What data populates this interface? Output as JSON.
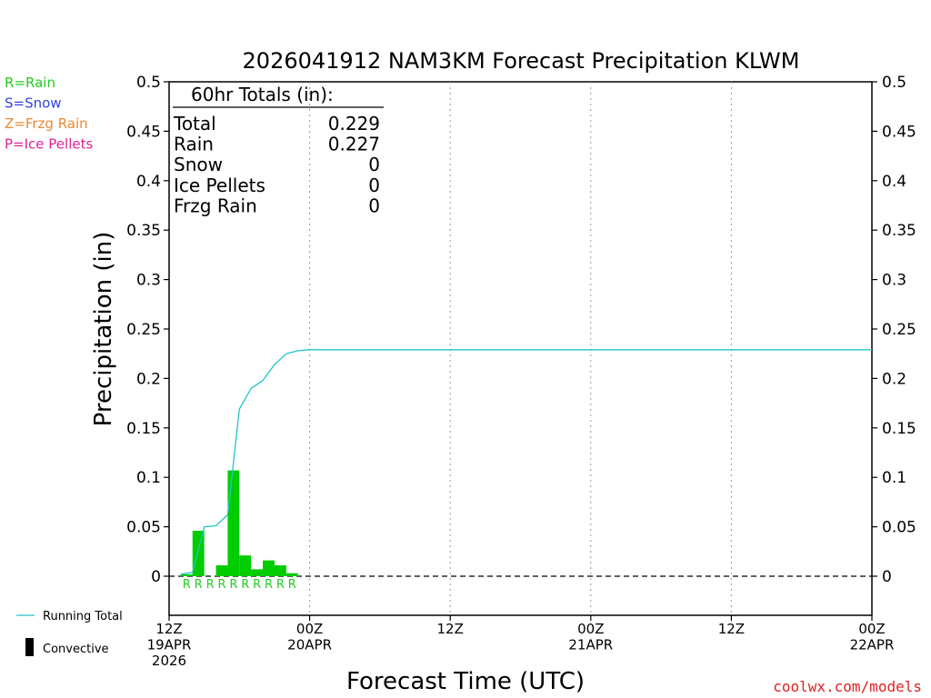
{
  "title": "2026041912 NAM3KM Forecast Precipitation KLWM",
  "ylabel": "Precipitation (in)",
  "xlabel": "Forecast Time (UTC)",
  "credit": "coolwx.com/models",
  "legend_left": [
    {
      "text": "R=Rain",
      "color": "#22cc22"
    },
    {
      "text": "S=Snow",
      "color": "#3344dd"
    },
    {
      "text": "Z=Frzg Rain",
      "color": "#ee8833"
    },
    {
      "text": "P=Ice Pellets",
      "color": "#dd2299"
    }
  ],
  "legend_bottom": {
    "running_total": "Running Total",
    "convective": "Convective"
  },
  "totals": {
    "header": "60hr Totals (in):",
    "rows": [
      {
        "label": "Total",
        "value": "0.229"
      },
      {
        "label": "Rain",
        "value": "0.227"
      },
      {
        "label": "Snow",
        "value": "0"
      },
      {
        "label": "Ice Pellets",
        "value": "0"
      },
      {
        "label": "Frzg Rain",
        "value": "0"
      }
    ]
  },
  "colors": {
    "bar": "#00cc00",
    "running_total": "#22c4cc",
    "rain_label": "#22cc22"
  },
  "chart_data": {
    "type": "bar",
    "title": "2026041912 NAM3KM Forecast Precipitation KLWM",
    "xlabel": "Forecast Time (UTC)",
    "ylabel": "Precipitation (in)",
    "ylim": [
      -0.04,
      0.5
    ],
    "xlim": [
      0,
      60
    ],
    "yticks": [
      0,
      0.05,
      0.1,
      0.15,
      0.2,
      0.25,
      0.3,
      0.35,
      0.4,
      0.45,
      0.5
    ],
    "ytick_labels": [
      "0",
      "0.05",
      "0.1",
      "0.15",
      "0.2",
      "0.25",
      "0.3",
      "0.35",
      "0.4",
      "0.45",
      "0.5"
    ],
    "xticks": [
      {
        "hour": 0,
        "lines": [
          "12Z",
          "19APR",
          "2026"
        ]
      },
      {
        "hour": 12,
        "lines": [
          "00Z",
          "20APR"
        ]
      },
      {
        "hour": 24,
        "lines": [
          "12Z"
        ]
      },
      {
        "hour": 36,
        "lines": [
          "00Z",
          "21APR"
        ]
      },
      {
        "hour": 48,
        "lines": [
          "12Z"
        ]
      },
      {
        "hour": 60,
        "lines": [
          "00Z",
          "22APR"
        ]
      }
    ],
    "grid": "vertical dotted at 00Z/12Z",
    "series": [
      {
        "name": "Rain",
        "kind": "bar",
        "x": [
          2,
          3,
          4,
          5,
          6,
          7,
          8,
          9,
          10,
          11
        ],
        "values": [
          0.002,
          0.046,
          0.0,
          0.011,
          0.107,
          0.021,
          0.007,
          0.016,
          0.011,
          0.003
        ],
        "labels": [
          "R",
          "R",
          "R",
          "R",
          "R",
          "R",
          "R",
          "R",
          "R",
          "R"
        ]
      },
      {
        "name": "Running Total",
        "kind": "line",
        "x": [
          1,
          2,
          3,
          4,
          5,
          6,
          7,
          8,
          9,
          10,
          11,
          12,
          60
        ],
        "values": [
          0.002,
          0.004,
          0.05,
          0.051,
          0.062,
          0.169,
          0.19,
          0.198,
          0.214,
          0.225,
          0.228,
          0.229,
          0.229
        ]
      }
    ]
  }
}
